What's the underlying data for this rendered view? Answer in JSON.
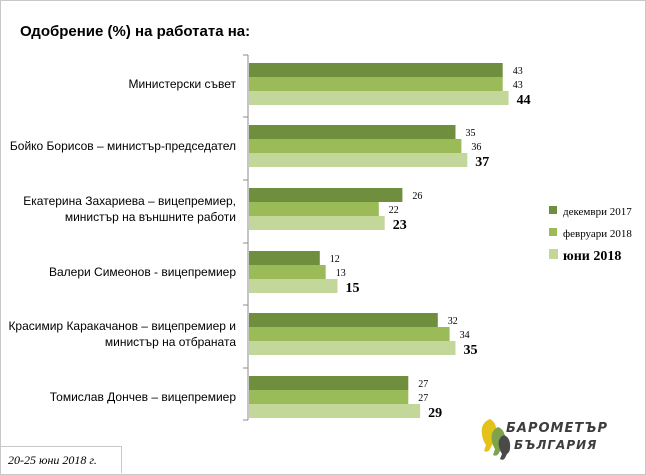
{
  "title": "Одобрение (%) на работата на:",
  "footnote": "20-25 юни 2018 г.",
  "logo": {
    "line1": "БАРОМЕТЪР",
    "line2": "БЪЛГАРИЯ"
  },
  "colors": {
    "dec2017": "#6f8f3f",
    "feb2018": "#9bbb59",
    "jun2018": "#c4d79b",
    "axis": "#8c8c8c",
    "logo_yellow": "#e3c21b",
    "logo_green": "#7fa34a",
    "logo_grey": "#4a4a4a"
  },
  "chart_data": {
    "type": "bar",
    "orientation": "horizontal",
    "title": "Одобрение (%) на работата на:",
    "categories": [
      [
        "Министерски съвет"
      ],
      [
        "Бойко Борисов – министър-председател"
      ],
      [
        "Екатерина Захариева – вицепремиер,",
        "министър на външните работи"
      ],
      [
        "Валери Симеонов - вицепремиер"
      ],
      [
        "Красимир Каракачанов – вицепремиер и",
        "министър на отбраната"
      ],
      [
        "Томислав Дончев – вицепремиер"
      ]
    ],
    "series": [
      {
        "name": "декември 2017",
        "values": [
          43,
          35,
          26,
          12,
          32,
          27
        ],
        "color": "#6f8f3f"
      },
      {
        "name": "февруари 2018",
        "values": [
          43,
          36,
          22,
          13,
          34,
          27
        ],
        "color": "#9bbb59"
      },
      {
        "name": "юни 2018",
        "values": [
          44,
          37,
          23,
          15,
          35,
          29
        ],
        "color": "#c4d79b"
      }
    ],
    "xlim": [
      0,
      50
    ],
    "grid": false,
    "legend": "right"
  }
}
